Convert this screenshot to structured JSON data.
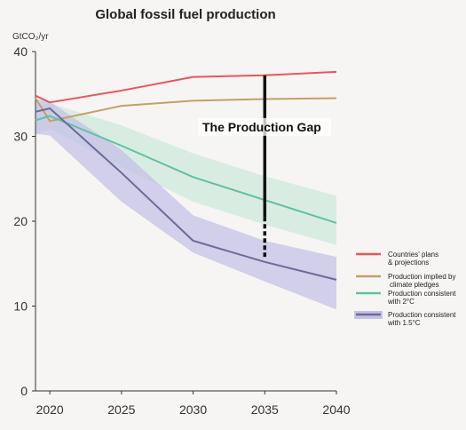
{
  "chart_data": {
    "type": "line",
    "title": "Global fossil fuel production",
    "ylabel": "GtCO₂/yr",
    "xlabel": "",
    "xlim": [
      2019,
      2040
    ],
    "ylim": [
      0,
      40
    ],
    "xticks": [
      2020,
      2025,
      2030,
      2035,
      2040
    ],
    "yticks": [
      0,
      10,
      20,
      30,
      40
    ],
    "grid": false,
    "legend_position": "right",
    "annotation": {
      "text": "The Production Gap",
      "x": 2035,
      "y_top": 37.2,
      "y_bottom": 15.8
    },
    "series": [
      {
        "name": "Countries' plans & projections",
        "color": "#e8575a",
        "x": [
          2019,
          2020,
          2025,
          2030,
          2035,
          2040
        ],
        "values": [
          34.8,
          34.0,
          35.4,
          37.0,
          37.2,
          37.6
        ]
      },
      {
        "name": "Production implied by climate pledges",
        "color": "#c4a063",
        "x": [
          2019,
          2020,
          2025,
          2030,
          2035,
          2040
        ],
        "values": [
          34.5,
          31.8,
          33.6,
          34.2,
          34.4,
          34.5
        ]
      },
      {
        "name": "Production consistent with 2°C",
        "color": "#5fc2a2",
        "band_color": "#cfe8dc",
        "x": [
          2019,
          2020,
          2025,
          2030,
          2035,
          2040
        ],
        "values": [
          31.9,
          32.4,
          28.9,
          25.2,
          22.5,
          19.8
        ],
        "band_low": [
          30.2,
          30.9,
          26.4,
          22.3,
          19.6,
          17.2
        ],
        "band_high": [
          33.6,
          33.9,
          31.3,
          28.0,
          25.3,
          23.0
        ]
      },
      {
        "name": "Production consistent with 1.5°C",
        "color": "#6c6a99",
        "band_color": "#c4c2e6",
        "x": [
          2019,
          2020,
          2025,
          2030,
          2035,
          2040
        ],
        "values": [
          32.9,
          33.3,
          25.7,
          17.7,
          15.2,
          13.1
        ],
        "band_low": [
          30.3,
          30.1,
          22.3,
          16.3,
          12.9,
          9.6
        ],
        "band_high": [
          34.4,
          34.1,
          28.4,
          20.7,
          17.7,
          15.8
        ]
      }
    ],
    "legend": [
      {
        "lines": [
          "Countries' plans",
          "& projections"
        ],
        "color": "#e8575a"
      },
      {
        "lines": [
          "Production implied by",
          "climate pledges"
        ],
        "color": "#c4a063"
      },
      {
        "lines": [
          "Production consistent",
          "with 2°C"
        ],
        "color": "#5fc2a2"
      },
      {
        "lines": [
          "Production consistent",
          "with 1.5°C"
        ],
        "color": "#6c6a99"
      }
    ]
  }
}
